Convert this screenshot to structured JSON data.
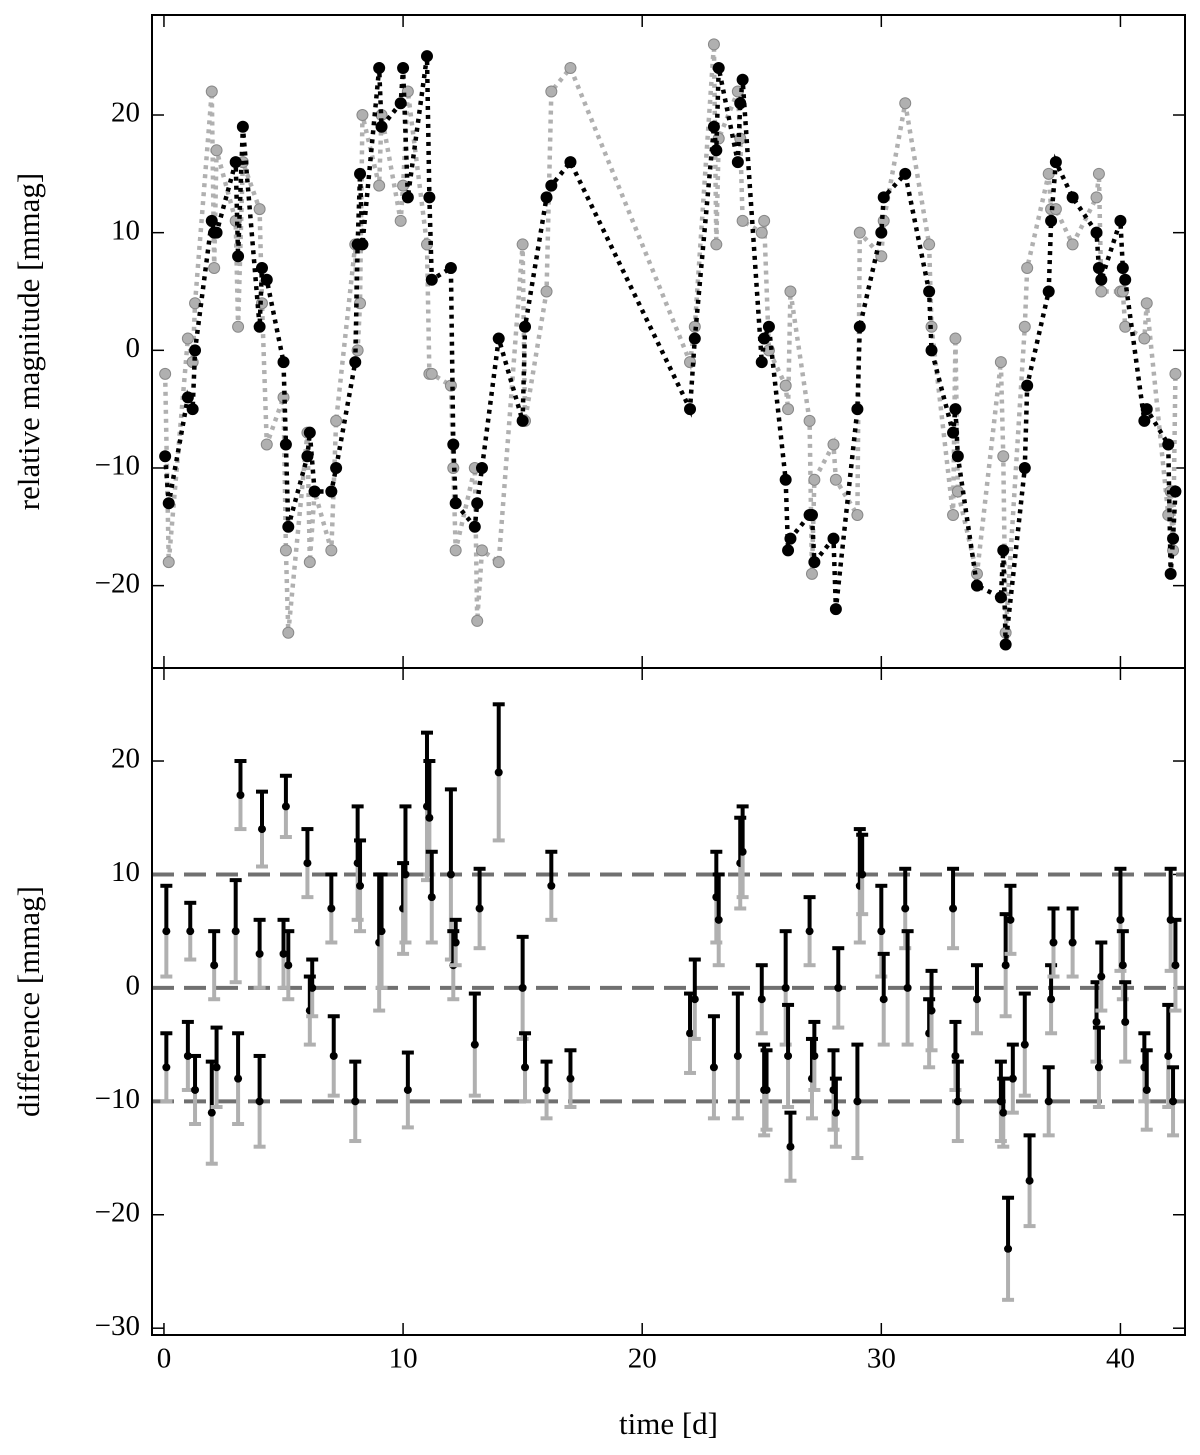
{
  "chart_data": [
    {
      "type": "line",
      "ylabel": "relative magnitude [mmag]",
      "xlim": [
        -0.5,
        42.7
      ],
      "ylim": [
        -27,
        28.5
      ],
      "yticks": [
        {
          "value": -20,
          "label": "−20"
        },
        {
          "value": -10,
          "label": "−10"
        },
        0,
        10,
        20
      ],
      "x": [
        0.05,
        0.2,
        1.0,
        1.2,
        1.3,
        2.0,
        2.1,
        2.2,
        3.0,
        3.1,
        3.3,
        4.0,
        4.1,
        4.3,
        5.0,
        5.1,
        5.2,
        6.0,
        6.1,
        6.3,
        7.0,
        7.2,
        8.0,
        8.1,
        8.2,
        8.3,
        9.0,
        9.1,
        9.9,
        10.0,
        10.2,
        11.0,
        11.1,
        11.2,
        12.0,
        12.1,
        12.2,
        13.0,
        13.1,
        13.3,
        14.0,
        15.0,
        15.1,
        16.0,
        16.2,
        17.0,
        22.0,
        22.2,
        23.0,
        23.1,
        23.2,
        24.0,
        24.1,
        24.2,
        25.0,
        25.1,
        25.3,
        26.0,
        26.1,
        26.2,
        27.0,
        27.1,
        27.2,
        28.0,
        28.1,
        29.0,
        29.1,
        30.0,
        30.1,
        31.0,
        32.0,
        32.1,
        33.0,
        33.1,
        33.2,
        34.0,
        35.0,
        35.1,
        35.2,
        36.0,
        36.1,
        37.0,
        37.1,
        37.3,
        38.0,
        39.0,
        39.1,
        39.2,
        40.0,
        40.1,
        40.2,
        41.0,
        41.1,
        42.0,
        42.1,
        42.2,
        42.3
      ],
      "series": [
        {
          "color": "#b0b0b0",
          "values": [
            -2,
            -18,
            1,
            -1,
            4,
            22,
            7,
            17,
            11,
            2,
            16,
            12,
            4,
            -8,
            -4,
            -17,
            -24,
            -7,
            -18,
            -12,
            -17,
            -6,
            9,
            0,
            4,
            20,
            14,
            20,
            11,
            14,
            22,
            9,
            -2,
            -2,
            -3,
            -10,
            -17,
            -10,
            -23,
            -17,
            -18,
            9,
            -6,
            5,
            22,
            24,
            -1,
            2,
            26,
            9,
            18,
            22,
            18,
            11,
            10,
            11,
            0,
            -3,
            -5,
            5,
            -6,
            -19,
            -11,
            -8,
            -11,
            -14,
            10,
            8,
            11,
            21,
            9,
            2,
            -14,
            1,
            -12,
            -19,
            -1,
            -9,
            -24,
            2,
            7,
            15,
            12,
            12,
            9,
            13,
            15,
            5,
            5,
            5,
            2,
            1,
            4,
            -14,
            -12,
            -17,
            -2
          ]
        },
        {
          "color": "#000000",
          "values": [
            -9,
            -13,
            -4,
            -5,
            0,
            11,
            10,
            10,
            16,
            8,
            19,
            2,
            7,
            6,
            -1,
            -8,
            -15,
            -9,
            -7,
            -12,
            -12,
            -10,
            -1,
            9,
            15,
            9,
            24,
            19,
            21,
            24,
            13,
            25,
            13,
            6,
            7,
            -8,
            -13,
            -15,
            -13,
            -10,
            1,
            -6,
            2,
            13,
            14,
            16,
            -5,
            1,
            19,
            17,
            24,
            16,
            21,
            23,
            -1,
            1,
            2,
            -11,
            -17,
            -16,
            -14,
            -14,
            -18,
            -16,
            -22,
            -5,
            2,
            10,
            13,
            15,
            5,
            0,
            -7,
            -5,
            -9,
            -20,
            -21,
            -17,
            -25,
            -10,
            -3,
            5,
            11,
            16,
            13,
            10,
            7,
            6,
            11,
            7,
            6,
            -6,
            -5,
            -8,
            -19,
            -16,
            -12
          ]
        }
      ]
    },
    {
      "type": "errorbar",
      "xlabel": "time [d]",
      "ylabel": "difference [mmag]",
      "xlim": [
        -0.5,
        42.7
      ],
      "ylim": [
        -30.6,
        28.2
      ],
      "xticks": [
        0,
        10,
        20,
        30,
        40
      ],
      "yticks": [
        {
          "value": -30,
          "label": "−30"
        },
        {
          "value": -20,
          "label": "−20"
        },
        {
          "value": -10,
          "label": "−10"
        },
        0,
        10,
        20
      ],
      "hlines": [
        -10,
        0,
        10
      ],
      "x": [
        0.1,
        0.1,
        1.0,
        1.1,
        1.3,
        2.0,
        2.1,
        2.2,
        3.0,
        3.1,
        3.2,
        4.0,
        4.1,
        4.0,
        5.0,
        5.1,
        5.2,
        6.0,
        6.1,
        6.2,
        7.0,
        7.1,
        8.0,
        8.1,
        8.2,
        9.0,
        9.1,
        10.0,
        10.1,
        10.2,
        11.0,
        11.1,
        11.2,
        12.0,
        12.1,
        12.2,
        13.0,
        13.2,
        14.0,
        15.0,
        15.1,
        16.0,
        16.2,
        17.0,
        22.0,
        22.2,
        23.0,
        23.1,
        23.2,
        24.0,
        24.1,
        24.2,
        25.0,
        25.1,
        25.2,
        26.0,
        26.1,
        26.2,
        27.0,
        27.1,
        27.2,
        28.0,
        28.1,
        28.2,
        29.0,
        29.1,
        29.2,
        30.0,
        30.1,
        31.0,
        31.1,
        32.0,
        32.1,
        33.0,
        33.1,
        33.2,
        34.0,
        35.0,
        35.1,
        35.2,
        35.3,
        35.4,
        35.5,
        36.0,
        36.2,
        37.0,
        37.1,
        37.2,
        38.0,
        39.0,
        39.1,
        39.2,
        40.0,
        40.1,
        40.2,
        41.0,
        41.1,
        42.0,
        42.1,
        42.2,
        42.3
      ],
      "values": [
        5,
        -7,
        -6,
        5,
        -9,
        -11,
        2,
        -7,
        5,
        -8,
        17,
        3,
        14,
        -10,
        3,
        16,
        2,
        11,
        -2,
        0,
        7,
        -6,
        -10,
        11,
        9,
        4,
        5,
        7,
        10,
        -9,
        16,
        15,
        8,
        10,
        2,
        4,
        -5,
        7,
        19,
        0,
        -7,
        -9,
        9,
        -8,
        -4,
        -1,
        -7,
        8,
        6,
        -6,
        11,
        12,
        -1,
        -9,
        -9,
        0,
        -6,
        -14,
        5,
        -8,
        -6,
        -9,
        -11,
        0,
        -10,
        9,
        10,
        5,
        -1,
        7,
        0,
        -4,
        -2,
        7,
        -6,
        -10,
        -1,
        -10,
        -11,
        2,
        -23,
        6,
        -8,
        -5,
        -17,
        -10,
        -1,
        4,
        4,
        -3,
        -7,
        1,
        6,
        2,
        -3,
        -7,
        -9,
        -6,
        6,
        -10,
        2
      ],
      "errors": [
        4,
        3,
        3,
        2.5,
        3,
        4.5,
        3,
        3.5,
        4.5,
        4,
        3,
        3,
        3.3,
        4,
        3,
        2.7,
        3,
        3,
        3,
        2.5,
        3,
        3.5,
        3.5,
        5,
        4,
        6,
        5,
        4,
        6,
        3.3,
        6.5,
        5,
        4,
        7.5,
        3,
        2,
        4.5,
        3.5,
        6,
        4.5,
        3,
        2.5,
        3,
        2.5,
        3.5,
        3.5,
        4.5,
        4,
        4,
        5.5,
        4,
        4,
        3,
        4,
        3.5,
        5,
        4.5,
        3,
        3,
        3.5,
        3,
        3.5,
        3,
        3.5,
        5,
        5,
        3.5,
        4,
        4,
        3.5,
        5,
        3,
        3.5,
        3.5,
        3,
        3.5,
        3,
        3.5,
        3,
        4.5,
        4.5,
        3,
        3,
        4.5,
        4,
        3,
        3,
        3,
        3,
        3.5,
        3.5,
        3,
        4.5,
        3,
        3.5,
        3,
        3.5,
        4.5,
        4.5,
        3,
        4
      ]
    }
  ]
}
